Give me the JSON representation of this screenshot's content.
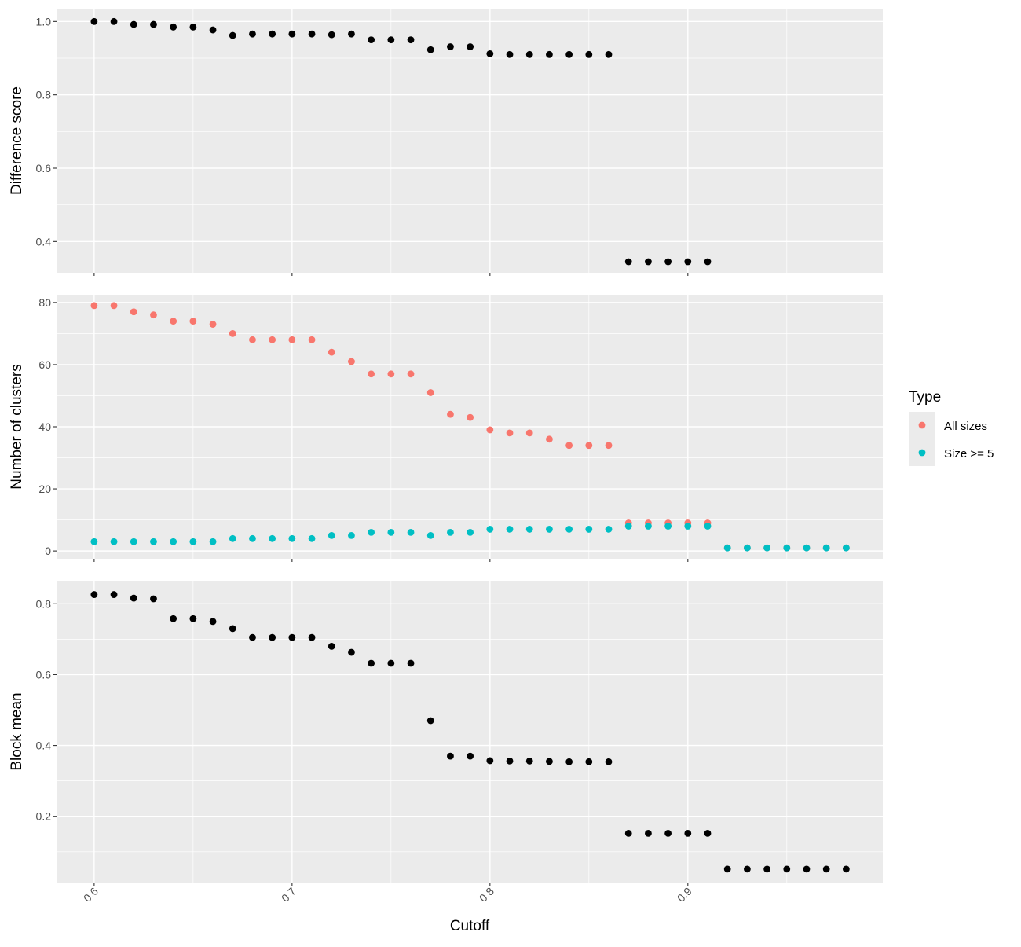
{
  "chart_data": {
    "type": "scatter",
    "shared_x": {
      "label": "Cutoff",
      "range": [
        0.581,
        0.9985
      ],
      "ticks": [
        0.6,
        0.7,
        0.8,
        0.9
      ],
      "tick_labels": [
        "0.6",
        "0.7",
        "0.8",
        "0.9"
      ]
    },
    "panels": [
      {
        "ylabel": "Difference score",
        "ylim": [
          0.315,
          1.035
        ],
        "yticks": [
          0.4,
          0.6,
          0.8,
          1.0
        ],
        "ytick_labels": [
          "0.4",
          "0.6",
          "0.8",
          "1.0"
        ],
        "series": [
          {
            "color": "#000000",
            "x": [
              0.6,
              0.61,
              0.62,
              0.63,
              0.64,
              0.65,
              0.66,
              0.67,
              0.68,
              0.69,
              0.7,
              0.71,
              0.72,
              0.73,
              0.74,
              0.75,
              0.76,
              0.77,
              0.78,
              0.79,
              0.8,
              0.81,
              0.82,
              0.83,
              0.84,
              0.85,
              0.86,
              0.87,
              0.88,
              0.89,
              0.9,
              0.91
            ],
            "y": [
              1.0,
              1.0,
              0.992,
              0.992,
              0.985,
              0.985,
              0.977,
              0.962,
              0.966,
              0.966,
              0.966,
              0.966,
              0.964,
              0.966,
              0.95,
              0.95,
              0.95,
              0.923,
              0.931,
              0.931,
              0.912,
              0.91,
              0.91,
              0.91,
              0.91,
              0.91,
              0.91,
              0.345,
              0.345,
              0.345,
              0.345,
              0.345
            ]
          }
        ]
      },
      {
        "ylabel": "Number of clusters",
        "ylim": [
          -2.5,
          82.5
        ],
        "yticks": [
          0,
          20,
          40,
          60,
          80
        ],
        "ytick_labels": [
          "0",
          "20",
          "40",
          "60",
          "80"
        ],
        "series": [
          {
            "name": "All sizes",
            "color": "#F8766D",
            "x": [
              0.6,
              0.61,
              0.62,
              0.63,
              0.64,
              0.65,
              0.66,
              0.67,
              0.68,
              0.69,
              0.7,
              0.71,
              0.72,
              0.73,
              0.74,
              0.75,
              0.76,
              0.77,
              0.78,
              0.79,
              0.8,
              0.81,
              0.82,
              0.83,
              0.84,
              0.85,
              0.86,
              0.87,
              0.88,
              0.89,
              0.9,
              0.91,
              0.92,
              0.93,
              0.94,
              0.95,
              0.96,
              0.97,
              0.98
            ],
            "y": [
              79,
              79,
              77,
              76,
              74,
              74,
              73,
              70,
              68,
              68,
              68,
              68,
              64,
              61,
              57,
              57,
              57,
              51,
              44,
              43,
              39,
              38,
              38,
              36,
              34,
              34,
              34,
              9,
              9,
              9,
              9,
              9,
              1,
              1,
              1,
              1,
              1,
              1,
              1
            ]
          },
          {
            "name": "Size >= 5",
            "color": "#00BFC4",
            "x": [
              0.6,
              0.61,
              0.62,
              0.63,
              0.64,
              0.65,
              0.66,
              0.67,
              0.68,
              0.69,
              0.7,
              0.71,
              0.72,
              0.73,
              0.74,
              0.75,
              0.76,
              0.77,
              0.78,
              0.79,
              0.8,
              0.81,
              0.82,
              0.83,
              0.84,
              0.85,
              0.86,
              0.87,
              0.88,
              0.89,
              0.9,
              0.91,
              0.92,
              0.93,
              0.94,
              0.95,
              0.96,
              0.97,
              0.98
            ],
            "y": [
              3,
              3,
              3,
              3,
              3,
              3,
              3,
              4,
              4,
              4,
              4,
              4,
              5,
              5,
              6,
              6,
              6,
              5,
              6,
              6,
              7,
              7,
              7,
              7,
              7,
              7,
              7,
              8,
              8,
              8,
              8,
              8,
              1,
              1,
              1,
              1,
              1,
              1,
              1
            ]
          }
        ]
      },
      {
        "ylabel": "Block mean",
        "ylim": [
          0.013,
          0.865
        ],
        "yticks": [
          0.2,
          0.4,
          0.6,
          0.8
        ],
        "ytick_labels": [
          "0.2",
          "0.4",
          "0.6",
          "0.8"
        ],
        "series": [
          {
            "color": "#000000",
            "x": [
              0.6,
              0.61,
              0.62,
              0.63,
              0.64,
              0.65,
              0.66,
              0.67,
              0.68,
              0.69,
              0.7,
              0.71,
              0.72,
              0.73,
              0.74,
              0.75,
              0.76,
              0.77,
              0.78,
              0.79,
              0.8,
              0.81,
              0.82,
              0.83,
              0.84,
              0.85,
              0.86,
              0.87,
              0.88,
              0.89,
              0.9,
              0.91,
              0.92,
              0.93,
              0.94,
              0.95,
              0.96,
              0.97,
              0.98
            ],
            "y": [
              0.826,
              0.826,
              0.816,
              0.814,
              0.758,
              0.758,
              0.75,
              0.73,
              0.705,
              0.705,
              0.705,
              0.705,
              0.68,
              0.663,
              0.632,
              0.632,
              0.632,
              0.47,
              0.37,
              0.37,
              0.357,
              0.356,
              0.356,
              0.355,
              0.354,
              0.354,
              0.354,
              0.152,
              0.152,
              0.152,
              0.152,
              0.152,
              0.051,
              0.051,
              0.051,
              0.051,
              0.051,
              0.051,
              0.051
            ]
          }
        ]
      }
    ],
    "legend": {
      "title": "Type",
      "placement": "right",
      "entries": [
        {
          "label": "All sizes",
          "color": "#F8766D"
        },
        {
          "label": "Size >= 5",
          "color": "#00BFC4"
        }
      ]
    },
    "grid": true
  }
}
